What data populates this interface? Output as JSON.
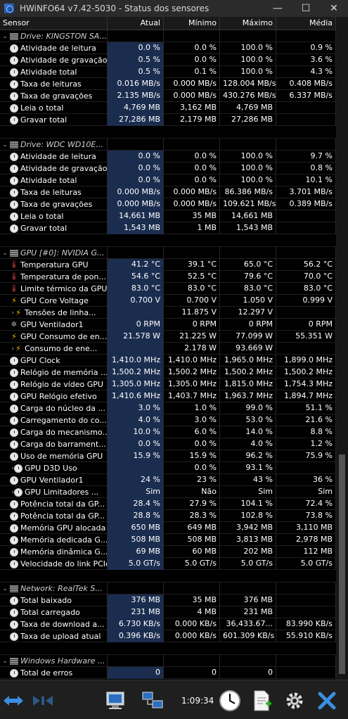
{
  "window": {
    "title": "HWiNFO64 v7.42-5030 - Status dos sensores",
    "minimize": "—",
    "maximize": "☐",
    "close": "✕"
  },
  "columns": {
    "sensor": "Sensor",
    "atual": "Atual",
    "minimo": "Mínimo",
    "maximo": "Máximo",
    "media": "Média"
  },
  "groups": [
    {
      "title": "Drive: KINGSTON SA...",
      "icon": "drive-icon",
      "rows": [
        {
          "name": "Atividade de leitura",
          "icon": "clock-icon",
          "v": [
            "0.0 %",
            "0.0 %",
            "100.0 %",
            "0.9 %"
          ]
        },
        {
          "name": "Atividade de gravação",
          "icon": "clock-icon",
          "v": [
            "0.5 %",
            "0.0 %",
            "100.0 %",
            "3.6 %"
          ]
        },
        {
          "name": "Atividade total",
          "icon": "clock-icon",
          "v": [
            "0.5 %",
            "0.1 %",
            "100.0 %",
            "4.3 %"
          ]
        },
        {
          "name": "Taxa de leituras",
          "icon": "clock-icon",
          "v": [
            "0.016 MB/s",
            "0.000 MB/s",
            "128.004 MB/s",
            "0.408 MB/s"
          ]
        },
        {
          "name": "Taxa de gravações",
          "icon": "clock-icon",
          "v": [
            "2.135 MB/s",
            "0.000 MB/s",
            "430.276 MB/s",
            "6.337 MB/s"
          ]
        },
        {
          "name": "Leia o total",
          "icon": "clock-icon",
          "v": [
            "4,769 MB",
            "3,162 MB",
            "4,769 MB",
            ""
          ]
        },
        {
          "name": "Gravar total",
          "icon": "clock-icon",
          "v": [
            "27,286 MB",
            "2,179 MB",
            "27,286 MB",
            ""
          ]
        }
      ]
    },
    {
      "title": "Drive: WDC WD10E...",
      "icon": "drive-icon",
      "rows": [
        {
          "name": "Atividade de leitura",
          "icon": "clock-icon",
          "v": [
            "0.0 %",
            "0.0 %",
            "100.0 %",
            "9.7 %"
          ]
        },
        {
          "name": "Atividade de gravação",
          "icon": "clock-icon",
          "v": [
            "0.0 %",
            "0.0 %",
            "100.0 %",
            "0.8 %"
          ]
        },
        {
          "name": "Atividade total",
          "icon": "clock-icon",
          "v": [
            "0.0 %",
            "0.0 %",
            "100.0 %",
            "10.1 %"
          ]
        },
        {
          "name": "Taxa de leituras",
          "icon": "clock-icon",
          "v": [
            "0.000 MB/s",
            "0.000 MB/s",
            "86.386 MB/s",
            "3.701 MB/s"
          ]
        },
        {
          "name": "Taxa de gravações",
          "icon": "clock-icon",
          "v": [
            "0.000 MB/s",
            "0.000 MB/s",
            "109.621 MB/s",
            "0.389 MB/s"
          ]
        },
        {
          "name": "Leia o total",
          "icon": "clock-icon",
          "v": [
            "14,661 MB",
            "35 MB",
            "14,661 MB",
            ""
          ]
        },
        {
          "name": "Gravar total",
          "icon": "clock-icon",
          "v": [
            "1,543 MB",
            "1 MB",
            "1,543 MB",
            ""
          ]
        }
      ]
    },
    {
      "title": "GPU [#0]: NVIDIA G...",
      "icon": "drive-icon",
      "rows": [
        {
          "name": "Temperatura GPU",
          "icon": "thermometer-icon",
          "v": [
            "41.2 °C",
            "39.1 °C",
            "65.0 °C",
            "56.2 °C"
          ]
        },
        {
          "name": "Temperatura de pon...",
          "icon": "thermometer-icon",
          "v": [
            "54.6 °C",
            "52.5 °C",
            "79.6 °C",
            "70.0 °C"
          ]
        },
        {
          "name": "Limite térmico da GPU",
          "icon": "thermometer-icon",
          "v": [
            "83.0 °C",
            "83.0 °C",
            "83.0 °C",
            "83.0 °C"
          ]
        },
        {
          "name": "GPU Core Voltage",
          "icon": "bolt-icon",
          "v": [
            "0.700 V",
            "0.700 V",
            "1.050 V",
            "0.999 V"
          ]
        },
        {
          "name": "Tensões de linha...",
          "icon": "bolt-icon",
          "sub": true,
          "v": [
            "",
            "11.875 V",
            "12.297 V",
            ""
          ]
        },
        {
          "name": "GPU Ventilador1",
          "icon": "fan-icon",
          "v": [
            "0 RPM",
            "0 RPM",
            "0 RPM",
            "0 RPM"
          ]
        },
        {
          "name": "GPU Consumo de en...",
          "icon": "bolt-icon",
          "v": [
            "21.578 W",
            "21.225 W",
            "77.099 W",
            "55.351 W"
          ]
        },
        {
          "name": "Consumo de ene...",
          "icon": "bolt-icon",
          "sub": true,
          "v": [
            "",
            "2.178 W",
            "93.669 W",
            ""
          ]
        },
        {
          "name": "GPU Clock",
          "icon": "clock-icon",
          "v": [
            "1,410.0 MHz",
            "1,410.0 MHz",
            "1,965.0 MHz",
            "1,899.0 MHz"
          ]
        },
        {
          "name": "Relógio de memória ...",
          "icon": "clock-icon",
          "v": [
            "1,500.2 MHz",
            "1,500.2 MHz",
            "1,500.2 MHz",
            "1,500.2 MHz"
          ]
        },
        {
          "name": "Relógio de vídeo GPU",
          "icon": "clock-icon",
          "v": [
            "1,305.0 MHz",
            "1,305.0 MHz",
            "1,815.0 MHz",
            "1,754.3 MHz"
          ]
        },
        {
          "name": "GPU Relógio efetivo",
          "icon": "clock-icon",
          "v": [
            "1,410.6 MHz",
            "1,403.7 MHz",
            "1,963.7 MHz",
            "1,894.7 MHz"
          ]
        },
        {
          "name": "Carga do núcleo da ...",
          "icon": "clock-icon",
          "v": [
            "3.0 %",
            "1.0 %",
            "99.0 %",
            "51.1 %"
          ]
        },
        {
          "name": "Carregamento do co...",
          "icon": "clock-icon",
          "v": [
            "4.0 %",
            "3.0 %",
            "53.0 %",
            "21.6 %"
          ]
        },
        {
          "name": "Carga do mecanismo...",
          "icon": "clock-icon",
          "v": [
            "10.0 %",
            "6.0 %",
            "14.0 %",
            "8.8 %"
          ]
        },
        {
          "name": "Carga do barrament...",
          "icon": "clock-icon",
          "v": [
            "0.0 %",
            "0.0 %",
            "4.0 %",
            "1.2 %"
          ]
        },
        {
          "name": "Uso de memória GPU",
          "icon": "clock-icon",
          "v": [
            "15.9 %",
            "15.9 %",
            "96.2 %",
            "75.9 %"
          ]
        },
        {
          "name": "GPU D3D Uso",
          "icon": "clock-icon",
          "sub": true,
          "v": [
            "",
            "0.0 %",
            "93.1 %",
            ""
          ]
        },
        {
          "name": "GPU Ventilador1",
          "icon": "clock-icon",
          "v": [
            "24 %",
            "23 %",
            "43 %",
            "36 %"
          ]
        },
        {
          "name": "GPU Limitadores ...",
          "icon": "clock-icon",
          "sub": true,
          "v": [
            "Sim",
            "Não",
            "Sim",
            "Sim"
          ]
        },
        {
          "name": "Potência total da GP...",
          "icon": "clock-icon",
          "v": [
            "28.4 %",
            "27.9 %",
            "104.1 %",
            "72.4 %"
          ]
        },
        {
          "name": "Potência total da GP...",
          "icon": "clock-icon",
          "v": [
            "28.8 %",
            "28.3 %",
            "102.8 %",
            "73.8 %"
          ]
        },
        {
          "name": "Memória GPU alocada",
          "icon": "clock-icon",
          "v": [
            "650 MB",
            "649 MB",
            "3,942 MB",
            "3,110 MB"
          ]
        },
        {
          "name": "Memória dedicada G...",
          "icon": "clock-icon",
          "v": [
            "508 MB",
            "508 MB",
            "3,813 MB",
            "2,978 MB"
          ]
        },
        {
          "name": "Memória dinâmica G...",
          "icon": "clock-icon",
          "v": [
            "69 MB",
            "60 MB",
            "202 MB",
            "112 MB"
          ]
        },
        {
          "name": "Velocidade do link PCIe",
          "icon": "clock-icon",
          "v": [
            "5.0 GT/s",
            "5.0 GT/s",
            "5.0 GT/s",
            "5.0 GT/s"
          ]
        }
      ]
    },
    {
      "title": "Network: RealTek S...",
      "icon": "drive-icon",
      "rows": [
        {
          "name": "Total baixado",
          "icon": "clock-icon",
          "v": [
            "376 MB",
            "35 MB",
            "376 MB",
            ""
          ]
        },
        {
          "name": "Total carregado",
          "icon": "clock-icon",
          "v": [
            "231 MB",
            "4 MB",
            "231 MB",
            ""
          ]
        },
        {
          "name": "Taxa de download a...",
          "icon": "clock-icon",
          "v": [
            "6.730 KB/s",
            "0.000 KB/s",
            "36,433.67...",
            "83.990 KB/s"
          ]
        },
        {
          "name": "Taxa de upload atual",
          "icon": "clock-icon",
          "v": [
            "0.396 KB/s",
            "0.000 KB/s",
            "601.309 KB/s",
            "55.910 KB/s"
          ]
        }
      ]
    },
    {
      "title": "Windows Hardware ...",
      "icon": "drive-icon",
      "rows": [
        {
          "name": "Total de erros",
          "icon": "clock-icon",
          "v": [
            "0",
            "0",
            "0",
            ""
          ]
        }
      ]
    }
  ],
  "statusbar": {
    "time": "1:09:34"
  }
}
